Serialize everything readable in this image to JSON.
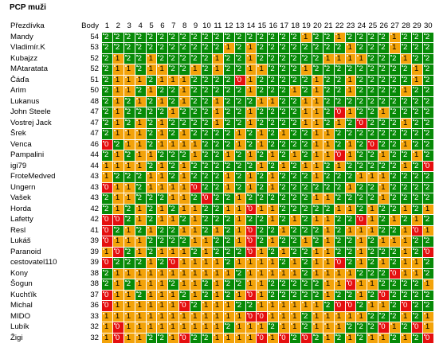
{
  "title": "PCP muži",
  "columns": {
    "name": "Přezdívka",
    "points": "Body",
    "rounds": [
      "1",
      "2",
      "3",
      "4",
      "5",
      "6",
      "7",
      "8",
      "9",
      "10",
      "11",
      "12",
      "13",
      "14",
      "15",
      "16",
      "17",
      "18",
      "19",
      "20",
      "21",
      "22",
      "23",
      "24",
      "25",
      "26",
      "27",
      "28",
      "29",
      "30"
    ]
  },
  "colors": {
    "2": "#078a07",
    "1": "#f3a30a",
    "0": "#e50f0f"
  },
  "rows": [
    {
      "name": "Mandy",
      "points": "54",
      "results": "222222222222222222122122221222"
    },
    {
      "name": "Vladimír.K",
      "points": "53",
      "results": "222222222221212222222212221222"
    },
    {
      "name": "Kubajzz",
      "points": "52",
      "results": "212212222212212222221111222122"
    },
    {
      "name": "MAtaratata",
      "points": "52",
      "results": "211211221212211222122222222212"
    },
    {
      "name": "Čáďa",
      "points": "51",
      "results": "211121112222012222212212222212"
    },
    {
      "name": "Arim",
      "points": "50",
      "results": "211212212222212221212212222122"
    },
    {
      "name": "Lukanus",
      "points": "48",
      "results": "212121212212221122112222222222"
    },
    {
      "name": "John Steele",
      "points": "47",
      "results": "212222122212212222112012212222"
    },
    {
      "name": "Vostrej Jack",
      "points": "47",
      "results": "212121222212212222112120222122"
    },
    {
      "name": "Šrek",
      "points": "47",
      "results": "211121212222121212211222222222"
    },
    {
      "name": "Venca",
      "points": "46",
      "results": "021121111222121222211212022122"
    },
    {
      "name": "Pampalini",
      "points": "44",
      "results": "212112221221212121211012212212"
    },
    {
      "name": "igi79",
      "points": "44",
      "results": "111121212222221212112122222120"
    },
    {
      "name": "FroteMedved",
      "points": "43",
      "results": "122211212221212122212221112222"
    },
    {
      "name": "Ungern",
      "points": "43",
      "results": "011211110221212122222212212222"
    },
    {
      "name": "Vašek",
      "points": "43",
      "results": "211222112022122222211222212222"
    },
    {
      "name": "Horda",
      "points": "42",
      "results": "212121211221101122222112122121"
    },
    {
      "name": "Lafetty",
      "points": "42",
      "results": "002121121222122121211220121212"
    },
    {
      "name": "Resl",
      "points": "41",
      "results": "021212211212102212221211122101"
    },
    {
      "name": "Lukáš",
      "points": "39",
      "results": "011122221122102122121221211122"
    },
    {
      "name": "Paranoid",
      "points": "39",
      "results": "102121112122201212211221222120"
    },
    {
      "name": "cestovatel110",
      "points": "39",
      "results": "022212011112111121211021212112"
    },
    {
      "name": "Kony",
      "points": "38",
      "results": "211111111111211111211112220112"
    },
    {
      "name": "Šogun",
      "points": "38",
      "results": "212111211212211222221101122221"
    },
    {
      "name": "Kuchťík",
      "points": "37",
      "results": "011211121212101222221221202222"
    },
    {
      "name": "Michal",
      "points": "36",
      "results": "011111102111221111112002112022"
    },
    {
      "name": "MIDO",
      "points": "33",
      "results": "111111111111100111211111222121"
    },
    {
      "name": "Lubík",
      "points": "32",
      "results": "101111111112111211211122201201"
    },
    {
      "name": "Žigi",
      "points": "32",
      "results": "101122102211110102021212112120"
    }
  ]
}
